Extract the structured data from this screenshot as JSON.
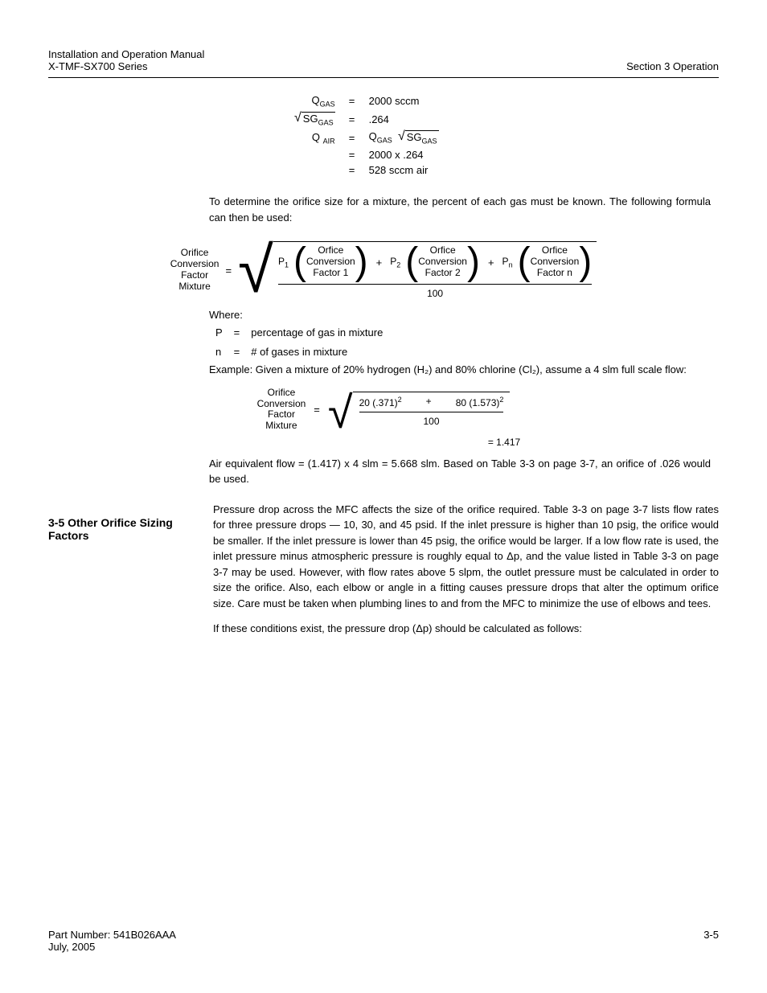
{
  "header": {
    "left": "Installation and Operation Manual",
    "left_sub": "X-TMF-SX700 Series",
    "right": "Section 3 Operation"
  },
  "hr_color": "#000000",
  "eq1": {
    "rows": [
      {
        "lhs_html": "Q<span class='sub'>GAS</span>",
        "rhs": "2000 sccm"
      },
      {
        "lhs_html": "<span class='radical'><span class='surd'>√</span><span class='radicand'>SG<span class=\"sub\">GAS</span></span></span>",
        "rhs": ".264"
      },
      {
        "lhs_html": "Q <span class='sub'>AIR</span>",
        "rhs_html": "Q<span class='sub'>GAS</span>&nbsp;&nbsp;<span class='radical'><span class='surd'>√</span><span class='radicand'>SG<span class=\"sub\">GAS</span></span></span>"
      },
      {
        "lhs_html": "",
        "rhs": "2000 x .264"
      },
      {
        "lhs_html": "",
        "rhs": "528 sccm air"
      }
    ]
  },
  "para1": "To determine the orifice size for a mixture, the percent of each gas must be known. The following formula can then be used:",
  "big_formula": {
    "left_stack": [
      "Orifice",
      "Conversion",
      "Factor",
      "Mixture"
    ],
    "terms": [
      {
        "p_label": "P",
        "p_sub": "1",
        "stack": [
          "Orfice",
          "Conversion",
          "Factor 1"
        ]
      },
      {
        "p_label": "P",
        "p_sub": "2",
        "stack": [
          "Orfice",
          "Conversion",
          "Factor 2"
        ]
      },
      {
        "p_label": "P",
        "p_sub": "n",
        "stack": [
          "Orfice",
          "Conversion",
          "Factor n"
        ]
      }
    ],
    "denominator": "100"
  },
  "where": {
    "lead": "Where:",
    "rows": [
      {
        "l": "P",
        "r": "percentage of gas in mixture"
      },
      {
        "l": "n",
        "r": "# of gases in mixture"
      }
    ]
  },
  "example_lead": "Example: Given a mixture of 20% hydrogen (H₂) and 80% chlorine (Cl₂), assume a 4 slm full scale flow:",
  "num_formula": {
    "left_stack": [
      "Orifice",
      "Conversion",
      "Factor",
      "Mixture"
    ],
    "terms": [
      "20 (.371)²",
      "+",
      "80 (1.573)²"
    ],
    "denominator": "100",
    "result": "=  1.417"
  },
  "para2": "Air equivalent flow = (1.417) x 4 slm = 5.668 slm. Based on Table 3-3 on page 3-7, an orifice of .026 would be used.",
  "section2": {
    "title": "3-5 Other Orifice Sizing Factors",
    "p1": "Pressure drop across the MFC affects the size of the orifice required. Table 3-3 on page 3-7 lists flow rates for three pressure drops — 10, 30, and 45 psid. If the inlet pressure is higher than 10 psig, the orifice would be smaller. If the inlet pressure is lower than 45 psig, the orifice would be larger. If a low flow rate is used, the inlet pressure minus atmospheric pressure is roughly equal to Δp, and the value listed in Table 3-3 on page 3-7 may be used. However, with flow rates above 5 slpm, the outlet pressure must be calculated in order to size the orifice. Also, each elbow or angle in a fitting causes pressure drops that alter the optimum orifice size. Care must be taken when plumbing lines to and from the MFC to minimize the use of elbows and tees.",
    "p2_pre": "If these conditions exist, the pressure drop (",
    "p2_delta": "Δp",
    "p2_post": ") should be calculated as follows:"
  },
  "footer": {
    "left": "Part Number: 541B026AAA",
    "right": "3-5",
    "date": "July, 2005"
  },
  "style": {
    "font_family": "Arial, Helvetica",
    "body_font_size_pt": 10,
    "title_font_size_pt": 11,
    "text_color": "#000000",
    "bg_color": "#ffffff"
  }
}
